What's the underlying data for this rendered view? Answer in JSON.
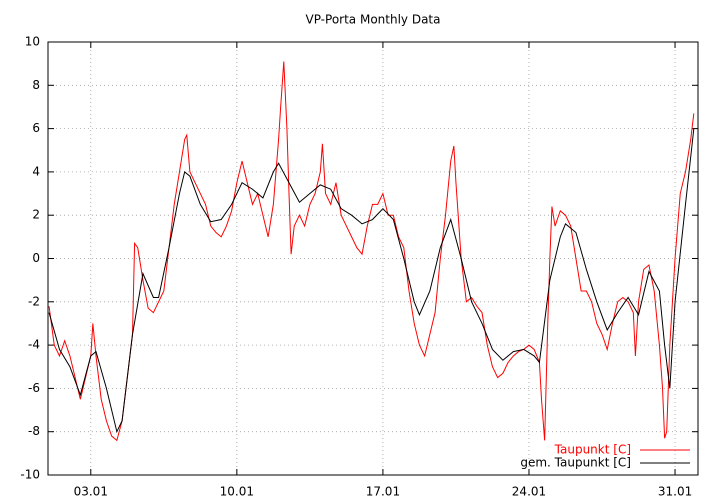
{
  "chart_data": {
    "type": "line",
    "title": "VP-Porta Monthly Data",
    "xlim": [
      0.95,
      32.1
    ],
    "xticks": [
      {
        "value": 3,
        "label": "03.01"
      },
      {
        "value": 10,
        "label": "10.01"
      },
      {
        "value": 17,
        "label": "17.01"
      },
      {
        "value": 24,
        "label": "24.01"
      },
      {
        "value": 31,
        "label": "31.01"
      }
    ],
    "ylim": [
      -10,
      10
    ],
    "yticks": [
      -10,
      -8,
      -6,
      -4,
      -2,
      0,
      2,
      4,
      6,
      8,
      10
    ],
    "grid": true,
    "legend": "bottom-right",
    "series": [
      {
        "name": "Taupunkt [C]",
        "color": "#ff0000",
        "x": [
          1.0,
          1.25,
          1.5,
          1.75,
          2.0,
          2.25,
          2.5,
          2.75,
          3.0,
          3.1,
          3.25,
          3.5,
          3.75,
          4.0,
          4.25,
          4.5,
          4.75,
          5.0,
          5.1,
          5.25,
          5.5,
          5.75,
          6.0,
          6.25,
          6.5,
          6.75,
          7.0,
          7.25,
          7.5,
          7.6,
          7.75,
          8.0,
          8.25,
          8.5,
          8.75,
          9.0,
          9.25,
          9.5,
          9.75,
          10.0,
          10.25,
          10.5,
          10.75,
          11.0,
          11.25,
          11.5,
          11.75,
          12.0,
          12.1,
          12.25,
          12.4,
          12.5,
          12.6,
          12.75,
          13.0,
          13.25,
          13.5,
          13.75,
          14.0,
          14.1,
          14.25,
          14.5,
          14.75,
          15.0,
          15.25,
          15.5,
          15.75,
          16.0,
          16.25,
          16.5,
          16.75,
          17.0,
          17.25,
          17.5,
          17.75,
          18.0,
          18.25,
          18.5,
          18.75,
          19.0,
          19.25,
          19.5,
          19.75,
          20.0,
          20.25,
          20.4,
          20.5,
          20.75,
          21.0,
          21.25,
          21.5,
          21.75,
          22.0,
          22.25,
          22.5,
          22.75,
          23.0,
          23.25,
          23.5,
          23.75,
          24.0,
          24.25,
          24.5,
          24.6,
          24.75,
          24.9,
          25.0,
          25.1,
          25.25,
          25.5,
          25.75,
          26.0,
          26.25,
          26.5,
          26.75,
          27.0,
          27.25,
          27.5,
          27.75,
          28.0,
          28.25,
          28.5,
          28.75,
          29.0,
          29.1,
          29.25,
          29.5,
          29.75,
          30.0,
          30.25,
          30.4,
          30.5,
          30.6,
          30.75,
          31.0,
          31.25,
          31.5,
          31.75,
          31.9
        ],
        "values": [
          -2.2,
          -4,
          -4.5,
          -3.8,
          -4.5,
          -5.5,
          -6.5,
          -5.5,
          -4.5,
          -3,
          -4.5,
          -6.5,
          -7.5,
          -8.2,
          -8.4,
          -7.5,
          -5.5,
          -3.5,
          0.7,
          0.5,
          -1,
          -2.3,
          -2.5,
          -2,
          -1.5,
          0.5,
          2.5,
          4,
          5.5,
          5.7,
          4,
          3.5,
          3,
          2.5,
          1.5,
          1.2,
          1.0,
          1.5,
          2.2,
          3.5,
          4.5,
          3.5,
          2.5,
          3,
          2,
          1,
          2.5,
          5.5,
          7,
          9.1,
          6,
          3,
          0.2,
          1.5,
          2,
          1.5,
          2.5,
          3,
          4,
          5.3,
          3,
          2.5,
          3.5,
          2,
          1.5,
          1,
          0.5,
          0.2,
          1.5,
          2.5,
          2.5,
          3,
          2,
          2,
          1,
          0.5,
          -1.5,
          -3,
          -4,
          -4.5,
          -3.5,
          -2.5,
          0,
          2,
          4.5,
          5.2,
          3.5,
          0,
          -2,
          -1.8,
          -2.2,
          -2.5,
          -4,
          -5,
          -5.5,
          -5.3,
          -4.8,
          -4.5,
          -4.3,
          -4.2,
          -4,
          -4.2,
          -4.8,
          -6.5,
          -8.4,
          -3,
          0,
          2.4,
          1.5,
          2.2,
          2,
          1.5,
          0,
          -1.5,
          -1.5,
          -2,
          -3,
          -3.5,
          -4.2,
          -3,
          -2,
          -1.8,
          -2,
          -2.5,
          -4.5,
          -2,
          -0.5,
          -0.3,
          -1.5,
          -4,
          -6,
          -8.3,
          -8,
          -4,
          0,
          3,
          4,
          5.5,
          6.7
        ]
      },
      {
        "name": "gem. Taupunkt [C]",
        "color": "#000000",
        "x": [
          1.0,
          1.5,
          2.0,
          2.5,
          3.0,
          3.25,
          3.75,
          4.25,
          4.5,
          5.0,
          5.5,
          6.0,
          6.25,
          6.75,
          7.25,
          7.5,
          7.75,
          8.25,
          8.75,
          9.25,
          9.75,
          10.25,
          10.75,
          11.25,
          11.75,
          12.0,
          12.5,
          13.0,
          13.5,
          14.0,
          14.5,
          15.0,
          15.5,
          16.0,
          16.5,
          17.0,
          17.5,
          18.0,
          18.5,
          18.75,
          19.25,
          19.75,
          20.25,
          20.75,
          21.25,
          21.75,
          22.25,
          22.75,
          23.25,
          23.75,
          24.25,
          24.5,
          25.0,
          25.5,
          25.75,
          26.25,
          26.75,
          27.25,
          27.75,
          28.25,
          28.75,
          29.25,
          29.75,
          30.25,
          30.5,
          30.75,
          31.0,
          31.5,
          31.9
        ],
        "values": [
          -2.5,
          -4.2,
          -5,
          -6.3,
          -4.5,
          -4.3,
          -6,
          -8,
          -7.5,
          -3.5,
          -0.7,
          -1.8,
          -1.8,
          0.5,
          3,
          4,
          3.8,
          2.5,
          1.7,
          1.8,
          2.5,
          3.5,
          3.2,
          2.8,
          4,
          4.4,
          3.5,
          2.6,
          3.0,
          3.4,
          3.2,
          2.3,
          2,
          1.6,
          1.8,
          2.3,
          1.8,
          0,
          -2,
          -2.6,
          -1.5,
          0.5,
          1.8,
          0,
          -2,
          -3,
          -4.2,
          -4.7,
          -4.3,
          -4.2,
          -4.5,
          -4.8,
          -1,
          1,
          1.6,
          1.2,
          -0.5,
          -2,
          -3.3,
          -2.5,
          -1.8,
          -2.6,
          -0.6,
          -1.5,
          -4,
          -6,
          -2,
          2.5,
          6
        ]
      }
    ]
  }
}
